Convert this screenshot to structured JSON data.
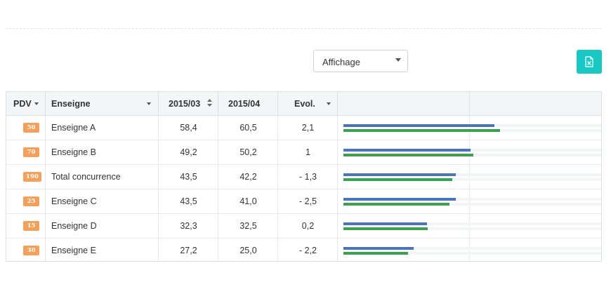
{
  "toolbar": {
    "display_select": {
      "label": "Affichage"
    },
    "export_icon": "excel-export-icon"
  },
  "table": {
    "columns": [
      {
        "key": "pdv",
        "label": "PDV"
      },
      {
        "key": "enseigne",
        "label": "Enseigne"
      },
      {
        "key": "p1",
        "label": "2015/03"
      },
      {
        "key": "p2",
        "label": "2015/04"
      },
      {
        "key": "evol",
        "label": "Evol."
      }
    ],
    "rows": [
      {
        "pdv": "50",
        "enseigne": "Enseigne A",
        "p1": "58,4",
        "p2": "60,5",
        "evol": "2,1"
      },
      {
        "pdv": "70",
        "enseigne": "Enseigne B",
        "p1": "49,2",
        "p2": "50,2",
        "evol": "1"
      },
      {
        "pdv": "190",
        "enseigne": "Total concurrence",
        "p1": "43,5",
        "p2": "42,2",
        "evol": "- 1,3"
      },
      {
        "pdv": "25",
        "enseigne": "Enseigne C",
        "p1": "43,5",
        "p2": "41,0",
        "evol": "- 2,5"
      },
      {
        "pdv": "15",
        "enseigne": "Enseigne D",
        "p1": "32,3",
        "p2": "32,5",
        "evol": "0,2"
      },
      {
        "pdv": "30",
        "enseigne": "Enseigne E",
        "p1": "27,2",
        "p2": "25,0",
        "evol": "- 2,2"
      }
    ],
    "bars": {
      "max_value": 100,
      "series": [
        {
          "key": "p1",
          "color": "#4a73c0"
        },
        {
          "key": "p2",
          "color": "#3aa150"
        }
      ]
    }
  }
}
